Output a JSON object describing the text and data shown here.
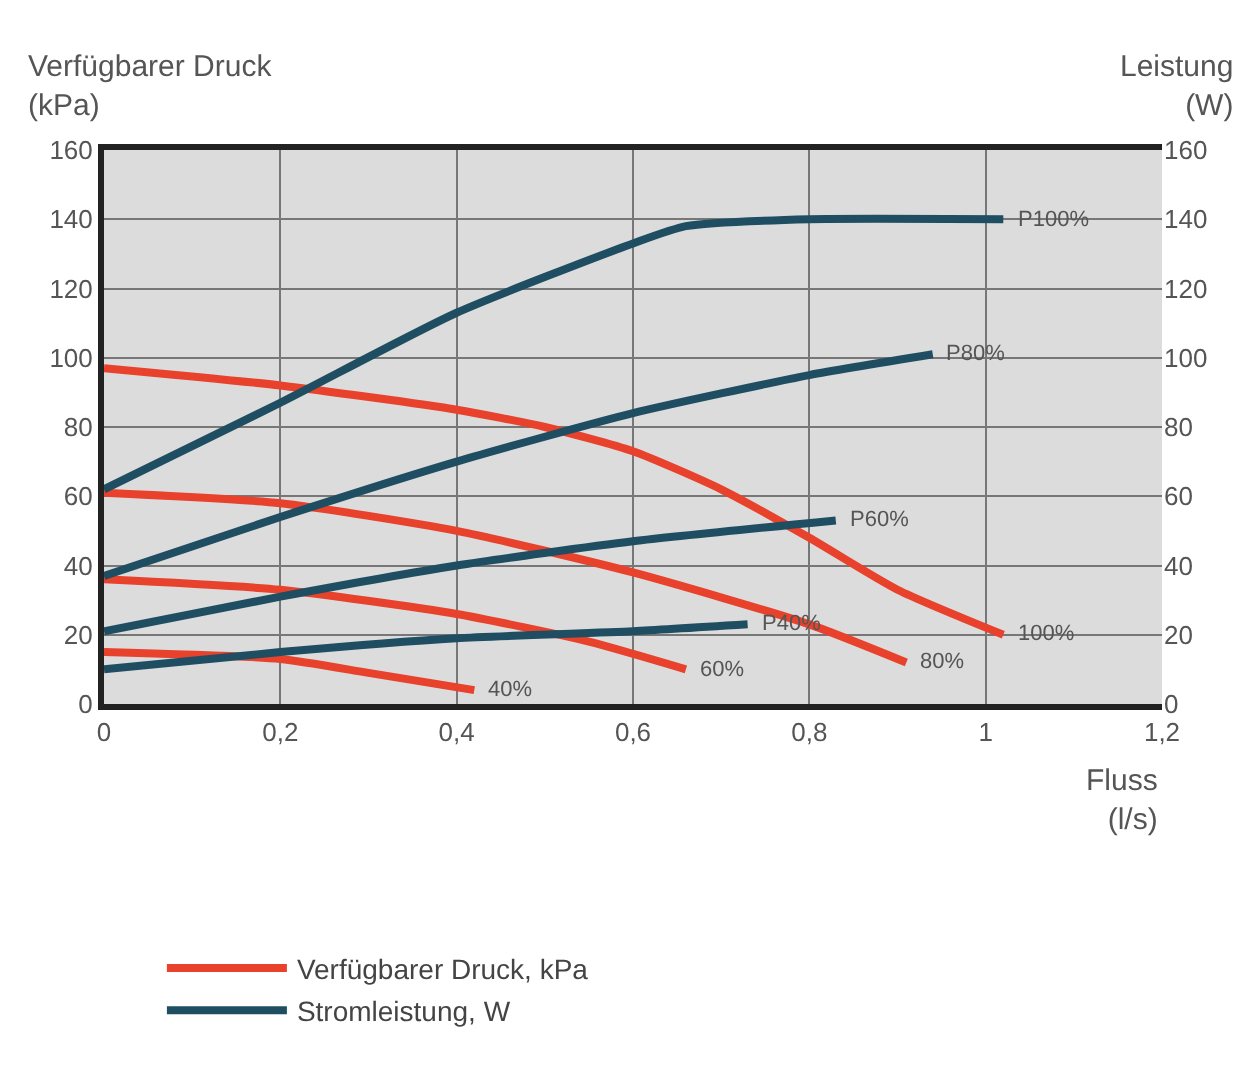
{
  "chart_data": {
    "type": "line",
    "ylabel": "Verfügbarer Druck\n(kPa)",
    "y2label": "Leistung\n(W)",
    "xlabel": "Fluss\n(l/s)",
    "xlim": [
      0,
      1.2
    ],
    "xticks": [
      0,
      {
        "value": 0.2,
        "label": "0,2"
      },
      {
        "value": 0.4,
        "label": "0,4"
      },
      {
        "value": 0.6,
        "label": "0,6"
      },
      {
        "value": 0.8,
        "label": "0,8"
      },
      1,
      {
        "value": 1.2,
        "label": "1,2"
      }
    ],
    "ylim": [
      0,
      160
    ],
    "yticks": [
      0,
      20,
      40,
      60,
      80,
      100,
      120,
      140,
      160
    ],
    "y2lim": [
      0,
      160
    ],
    "y2ticks": [
      0,
      20,
      40,
      60,
      80,
      100,
      120,
      140,
      160
    ],
    "grid": true,
    "legend": "bottom left",
    "marker": "none",
    "line_style": "solid",
    "series": [
      {
        "name": "Verfügbarer Druck, kPa",
        "color": "#e8412c",
        "x": [
          0,
          0.2,
          0.4,
          0.5,
          0.6,
          0.7,
          0.8,
          0.9,
          1.02
        ],
        "values": [
          97,
          92,
          85,
          80,
          73,
          62,
          48,
          33,
          20
        ]
      },
      {
        "color": "#e8412c",
        "x": [
          0,
          0.2,
          0.4,
          0.6,
          0.8,
          0.91
        ],
        "values": [
          61,
          58,
          50,
          38,
          23,
          12
        ]
      },
      {
        "color": "#e8412c",
        "x": [
          0,
          0.2,
          0.4,
          0.55,
          0.66
        ],
        "values": [
          36,
          33,
          26,
          18,
          10
        ]
      },
      {
        "color": "#e8412c",
        "x": [
          0,
          0.2,
          0.3,
          0.42
        ],
        "values": [
          15,
          13,
          9,
          4
        ]
      },
      {
        "name": "Stromleistung, W",
        "color": "#1f4e63",
        "axis": "y2",
        "x": [
          0,
          0.2,
          0.4,
          0.6,
          0.66,
          0.8,
          1.02
        ],
        "values": [
          62,
          87,
          113,
          133,
          138,
          140,
          140
        ]
      },
      {
        "color": "#1f4e63",
        "axis": "y2",
        "x": [
          0,
          0.2,
          0.4,
          0.6,
          0.8,
          0.94
        ],
        "values": [
          37,
          54,
          70,
          84,
          95,
          101
        ]
      },
      {
        "color": "#1f4e63",
        "axis": "y2",
        "x": [
          0,
          0.2,
          0.4,
          0.6,
          0.83
        ],
        "values": [
          21,
          31,
          40,
          47,
          53
        ]
      },
      {
        "color": "#1f4e63",
        "axis": "y2",
        "x": [
          0,
          0.2,
          0.4,
          0.6,
          0.73
        ],
        "values": [
          10,
          15,
          19,
          21,
          23
        ]
      }
    ],
    "annotations": [
      {
        "text": "100%",
        "x": 1.02,
        "y": 20
      },
      {
        "text": "80%",
        "x": 0.91,
        "y": 12
      },
      {
        "text": "60%",
        "x": 0.66,
        "y": 10
      },
      {
        "text": "40%",
        "x": 0.42,
        "y": 4
      },
      {
        "text": "P100%",
        "x": 1.02,
        "y": 140
      },
      {
        "text": "P80%",
        "x": 0.94,
        "y": 101
      },
      {
        "text": "P60%",
        "x": 0.83,
        "y": 53
      },
      {
        "text": "P40%",
        "x": 0.73,
        "y": 23
      }
    ]
  }
}
